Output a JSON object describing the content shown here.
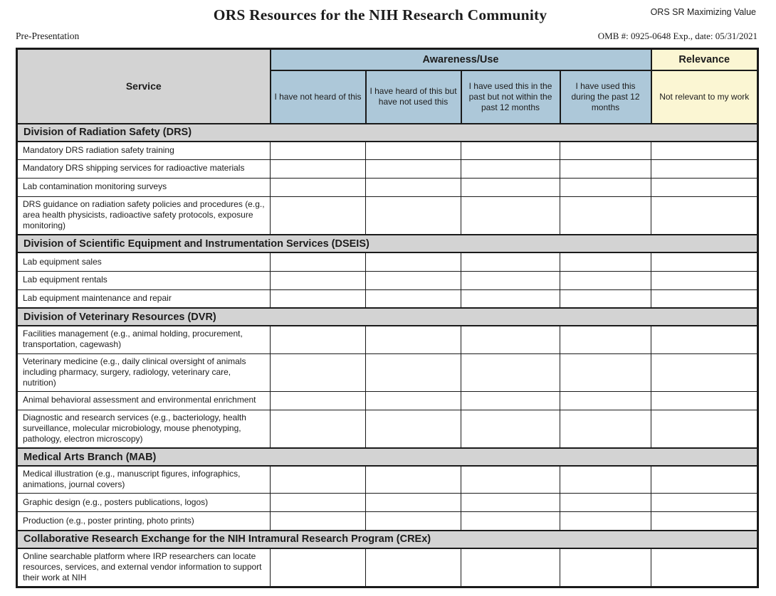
{
  "header": {
    "title": "ORS Resources for the NIH Research Community",
    "corner_label": "ORS SR Maximizing Value",
    "pre_presentation": "Pre-Presentation",
    "omb": "OMB #: 0925-0648 Exp., date: 05/31/2021"
  },
  "colors": {
    "section_gray": "#d3d3d3",
    "awareness_blue": "#adc8d9",
    "relevance_yellow": "#fbf6d3",
    "border_ink": "#1a1a1a"
  },
  "table": {
    "service_header": "Service",
    "group_headers": {
      "awareness": "Awareness/Use",
      "relevance": "Relevance"
    },
    "columns": [
      "I have not heard of this",
      "I have heard of this but have not used this",
      "I have used this in the past but not within the past 12 months",
      "I have used this during the past 12 months",
      "Not relevant to my work"
    ],
    "sections": [
      {
        "title": "Division of Radiation Safety (DRS)",
        "rows": [
          "Mandatory DRS radiation safety training",
          "Mandatory DRS shipping services for radioactive materials",
          "Lab contamination monitoring surveys",
          "DRS guidance on radiation safety policies and procedures (e.g., area health physicists, radioactive safety protocols, exposure monitoring)"
        ]
      },
      {
        "title": "Division of Scientific Equipment and Instrumentation Services (DSEIS)",
        "rows": [
          "Lab equipment sales",
          "Lab equipment rentals",
          "Lab equipment maintenance and repair"
        ]
      },
      {
        "title": "Division of Veterinary Resources (DVR)",
        "rows": [
          "Facilities management (e.g., animal holding, procurement, transportation, cagewash)",
          "Veterinary medicine (e.g., daily clinical oversight of animals including pharmacy, surgery, radiology, veterinary care, nutrition)",
          "Animal behavioral assessment and environmental enrichment",
          "Diagnostic and research services (e.g., bacteriology, health surveillance, molecular microbiology, mouse phenotyping, pathology, electron microscopy)"
        ]
      },
      {
        "title": "Medical Arts Branch (MAB)",
        "rows": [
          "Medical illustration (e.g., manuscript figures, infographics, animations, journal covers)",
          "Graphic design (e.g., posters publications, logos)",
          "Production (e.g., poster printing, photo prints)"
        ]
      },
      {
        "title": "Collaborative Research Exchange for the NIH Intramural Research Program (CREx)",
        "rows": [
          "Online searchable platform where IRP researchers can locate resources, services, and external vendor information to support their work at NIH"
        ]
      }
    ]
  }
}
